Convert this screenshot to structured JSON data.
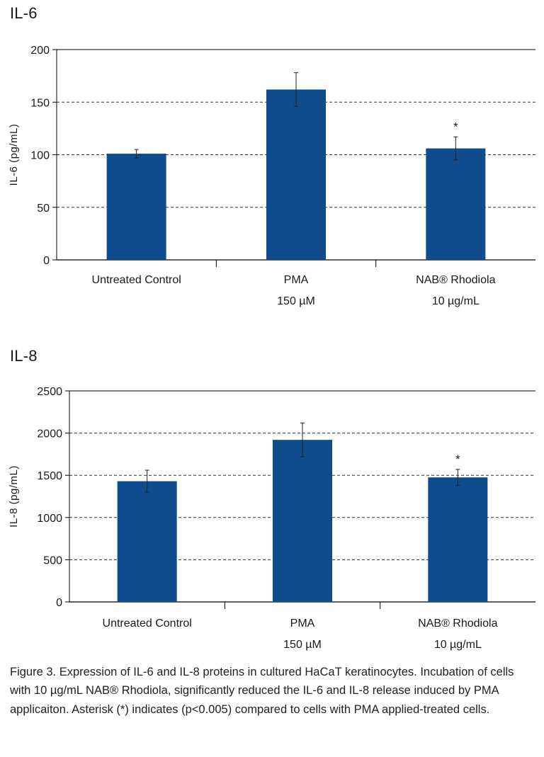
{
  "chart_data": [
    {
      "type": "bar",
      "title": "IL-6",
      "ylabel": "IL-6 (pg/mL)",
      "xlabel": "",
      "categories": [
        [
          "Untreated Control"
        ],
        [
          "PMA",
          "150 µM"
        ],
        [
          "NAB® Rhodiola",
          "10 µg/mL"
        ]
      ],
      "values": [
        101,
        162,
        106
      ],
      "errors": [
        4,
        16,
        11
      ],
      "significance": [
        "",
        "",
        "*"
      ],
      "ylim": [
        0,
        200
      ],
      "yticks": [
        0,
        50,
        100,
        150,
        200
      ],
      "grid": true,
      "bar_color": "#0f4c8e"
    },
    {
      "type": "bar",
      "title": "IL-8",
      "ylabel": "IL-8 (pg/mL)",
      "xlabel": "",
      "categories": [
        [
          "Untreated Control"
        ],
        [
          "PMA",
          "150 µM"
        ],
        [
          "NAB® Rhodiola",
          "10 µg/mL"
        ]
      ],
      "values": [
        1430,
        1920,
        1475
      ],
      "errors": [
        130,
        200,
        95
      ],
      "significance": [
        "",
        "",
        "*"
      ],
      "ylim": [
        0,
        2500
      ],
      "yticks": [
        0,
        500,
        1000,
        1500,
        2000,
        2500
      ],
      "grid": true,
      "bar_color": "#0f4c8e"
    }
  ],
  "caption": {
    "label": "Figure 3",
    "text": ". Expression of IL-6 and IL-8 proteins in cultured HaCaT keratinocytes. Incubation of cells with 10 µg/mL NAB® Rhodiola, significantly reduced the IL-6 and IL-8 release induced by PMA applicaiton. Asterisk (*) indicates (p<0.005) compared to cells with PMA applied-treated cells."
  }
}
